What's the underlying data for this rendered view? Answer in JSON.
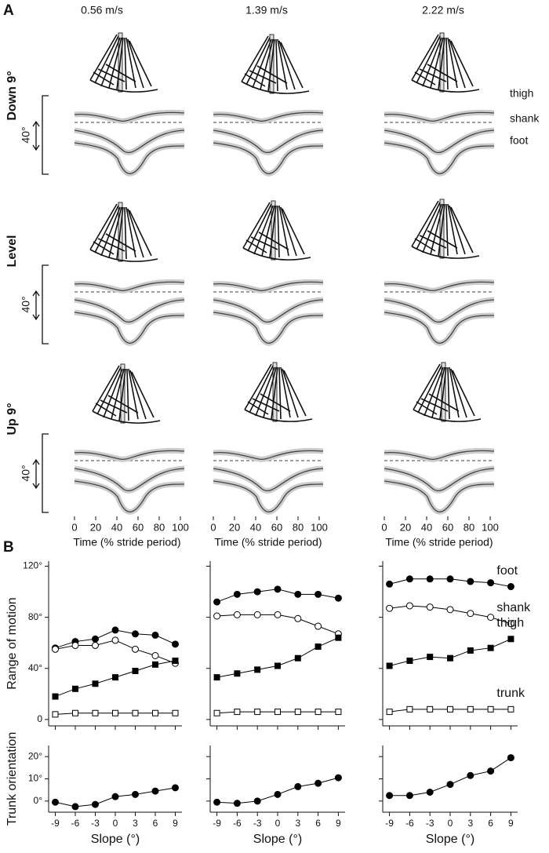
{
  "panel_a": {
    "label": "A",
    "speeds": [
      "0.56 m/s",
      "1.39 m/s",
      "2.22 m/s"
    ],
    "rows": [
      "Down 9°",
      "Level",
      "Up 9°"
    ],
    "scale": "40°",
    "traces": [
      "thigh",
      "shank",
      "foot"
    ],
    "xlim": [
      0,
      100
    ],
    "xticks": [
      0,
      20,
      40,
      60,
      80,
      100
    ],
    "xlabel": "Time (% stride period)"
  },
  "panel_b": {
    "label": "B"
  },
  "chart_data": [
    {
      "type": "line",
      "x": [
        -9,
        -6,
        -3,
        0,
        3,
        6,
        9
      ],
      "xlim": [
        -10,
        10
      ],
      "xticks": [
        -9,
        -6,
        -3,
        0,
        3,
        6,
        9
      ],
      "xtick_labels": false,
      "ylim": [
        -5,
        124
      ],
      "yticks": [
        {
          "value": 0,
          "label": "0"
        },
        {
          "value": 40,
          "label": "40°"
        },
        {
          "value": 80,
          "label": "80°"
        },
        {
          "value": 120,
          "label": "120°"
        }
      ],
      "ylabel": "Range of motion",
      "series": [
        {
          "color": "#000000",
          "marker": "circle",
          "filled": true,
          "values": [
            56,
            61,
            63,
            70,
            67,
            66,
            59
          ]
        },
        {
          "color": "#000000",
          "marker": "circle",
          "filled": false,
          "values": [
            55,
            58,
            58,
            62,
            55,
            50,
            44
          ]
        },
        {
          "color": "#000000",
          "marker": "square",
          "filled": true,
          "values": [
            18,
            24,
            28,
            33,
            38,
            43,
            46
          ]
        },
        {
          "color": "#000000",
          "marker": "square",
          "filled": false,
          "values": [
            4,
            5,
            5,
            5,
            5,
            5,
            5
          ]
        }
      ]
    },
    {
      "type": "line",
      "x": [
        -9,
        -6,
        -3,
        0,
        3,
        6,
        9
      ],
      "xlim": [
        -10,
        10
      ],
      "xticks": [
        -9,
        -6,
        -3,
        0,
        3,
        6,
        9
      ],
      "xtick_labels": false,
      "ylim": [
        -5,
        124
      ],
      "yticks": [
        0,
        40,
        80,
        120
      ],
      "ytick_labels": false,
      "series": [
        {
          "color": "#000000",
          "marker": "circle",
          "filled": true,
          "values": [
            92,
            98,
            100,
            102,
            98,
            98,
            95
          ]
        },
        {
          "color": "#000000",
          "marker": "circle",
          "filled": false,
          "values": [
            81,
            82,
            82,
            82,
            79,
            73,
            67
          ]
        },
        {
          "color": "#000000",
          "marker": "square",
          "filled": true,
          "values": [
            33,
            36,
            39,
            42,
            48,
            57,
            64
          ]
        },
        {
          "color": "#000000",
          "marker": "square",
          "filled": false,
          "values": [
            5,
            6,
            6,
            6,
            6,
            6,
            6
          ]
        }
      ]
    },
    {
      "type": "line",
      "x": [
        -9,
        -6,
        -3,
        0,
        3,
        6,
        9
      ],
      "xlim": [
        -10,
        10
      ],
      "xticks": [
        -9,
        -6,
        -3,
        0,
        3,
        6,
        9
      ],
      "xtick_labels": false,
      "ylim": [
        -5,
        124
      ],
      "yticks": [
        0,
        40,
        80,
        120
      ],
      "ytick_labels": false,
      "series": [
        {
          "name": "foot",
          "color": "#000000",
          "marker": "circle",
          "filled": true,
          "values": [
            106,
            110,
            110,
            110,
            108,
            107,
            104
          ]
        },
        {
          "name": "shank",
          "color": "#000000",
          "marker": "circle",
          "filled": false,
          "values": [
            87,
            89,
            88,
            86,
            83,
            80,
            75
          ]
        },
        {
          "name": "thigh",
          "color": "#000000",
          "marker": "square",
          "filled": true,
          "values": [
            42,
            46,
            49,
            48,
            54,
            56,
            63
          ]
        },
        {
          "name": "trunk",
          "color": "#000000",
          "marker": "square",
          "filled": false,
          "values": [
            6,
            8,
            8,
            8,
            8,
            8,
            8
          ]
        }
      ]
    },
    {
      "type": "line",
      "x": [
        -9,
        -6,
        -3,
        0,
        3,
        6,
        9
      ],
      "xlim": [
        -10,
        10
      ],
      "xticks": [
        -9,
        -6,
        -3,
        0,
        3,
        6,
        9
      ],
      "xlabel": "Slope (°)",
      "ylim": [
        -5,
        25
      ],
      "yticks": [
        {
          "value": 0,
          "label": "0°"
        },
        {
          "value": 10,
          "label": "10°"
        },
        {
          "value": 20,
          "label": "20°"
        }
      ],
      "ylabel": "Trunk orientation",
      "series": [
        {
          "color": "#000000",
          "marker": "circle",
          "filled": true,
          "values": [
            -0.5,
            -2.5,
            -1.5,
            2,
            3,
            4.5,
            6
          ]
        }
      ]
    },
    {
      "type": "line",
      "x": [
        -9,
        -6,
        -3,
        0,
        3,
        6,
        9
      ],
      "xlim": [
        -10,
        10
      ],
      "xticks": [
        -9,
        -6,
        -3,
        0,
        3,
        6,
        9
      ],
      "xlabel": "Slope (°)",
      "ylim": [
        -5,
        25
      ],
      "yticks": [
        0,
        10,
        20
      ],
      "ytick_labels": false,
      "series": [
        {
          "color": "#000000",
          "marker": "circle",
          "filled": true,
          "values": [
            -0.5,
            -1,
            0,
            3,
            6.5,
            8,
            10.5
          ]
        }
      ]
    },
    {
      "type": "line",
      "x": [
        -9,
        -6,
        -3,
        0,
        3,
        6,
        9
      ],
      "xlim": [
        -10,
        10
      ],
      "xticks": [
        -9,
        -6,
        -3,
        0,
        3,
        6,
        9
      ],
      "xlabel": "Slope (°)",
      "ylim": [
        -5,
        25
      ],
      "yticks": [
        0,
        10,
        20
      ],
      "ytick_labels": false,
      "series": [
        {
          "color": "#000000",
          "marker": "circle",
          "filled": true,
          "values": [
            2.5,
            2.5,
            4,
            7.5,
            11.5,
            13.5,
            19.5
          ]
        }
      ]
    }
  ]
}
